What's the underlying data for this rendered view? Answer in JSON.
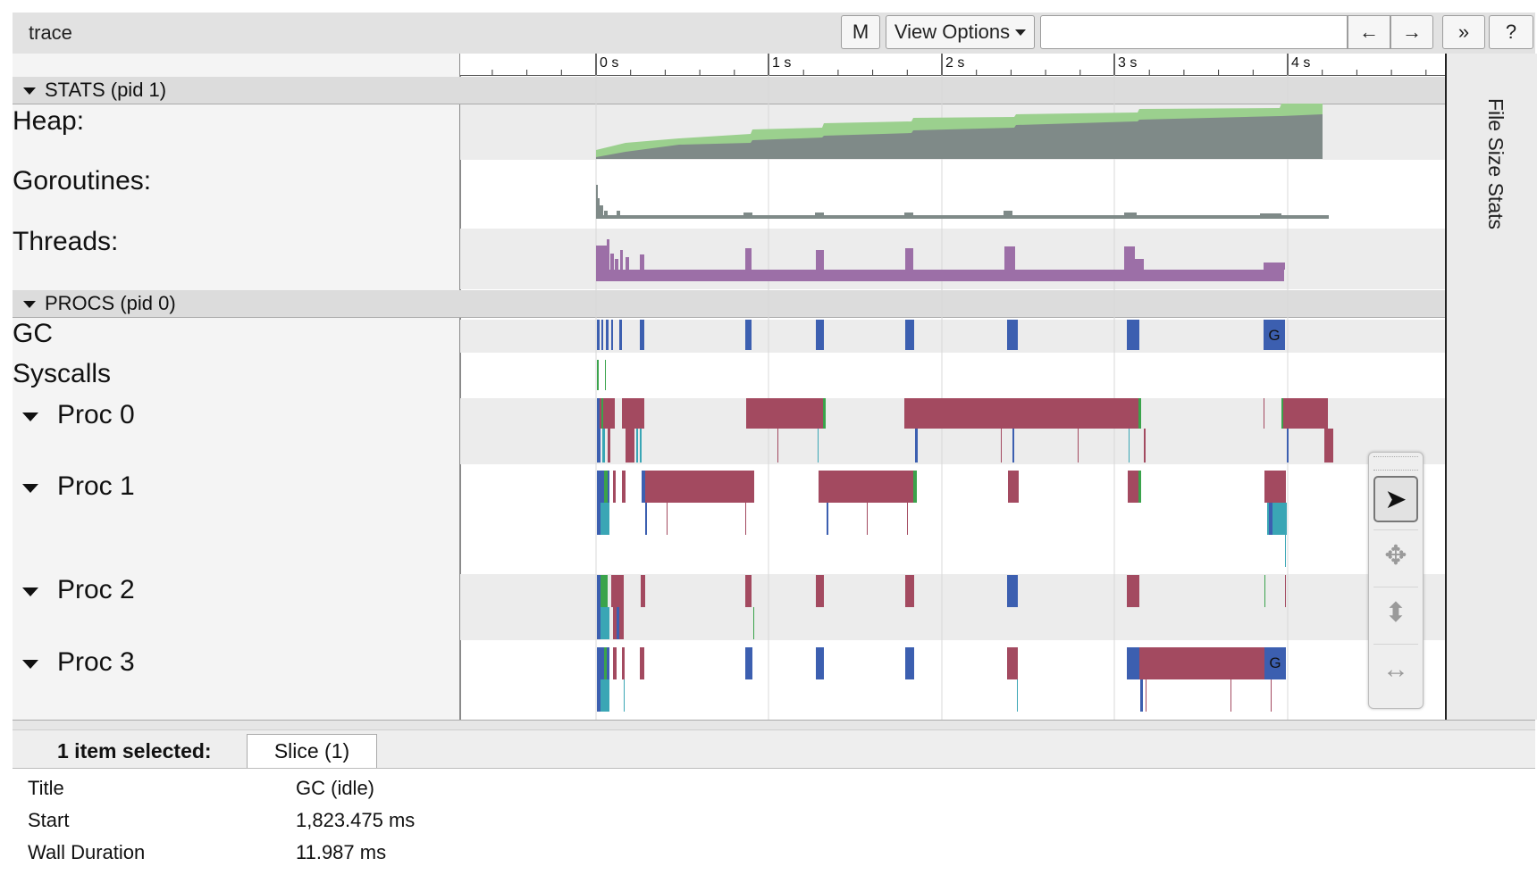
{
  "toolbar": {
    "title": "trace",
    "m_label": "M",
    "view_options_label": "View Options",
    "search_value": "",
    "prev_label": "←",
    "next_label": "→",
    "more_label": "»",
    "help_label": "?"
  },
  "ruler": {
    "ticks": [
      "0 s",
      "1 s",
      "2 s",
      "3 s",
      "4 s"
    ]
  },
  "side_panel": {
    "label": "File Size Stats"
  },
  "groups": {
    "stats": {
      "label": "STATS (pid 1)"
    },
    "procs": {
      "label": "PROCS (pid 0)"
    }
  },
  "stats_rows": {
    "heap": "Heap:",
    "goroutines": "Goroutines:",
    "threads": "Threads:"
  },
  "procs_rows": {
    "gc": "GC",
    "syscalls": "Syscalls",
    "proc0": "Proc 0",
    "proc1": "Proc 1",
    "proc2": "Proc 2",
    "proc3": "Proc 3"
  },
  "slice_letters": {
    "gc": "G",
    "proc3": "G"
  },
  "selection": {
    "summary": "1 item selected:",
    "tab": "Slice (1)",
    "props": [
      {
        "key": "Title",
        "value": "GC (idle)"
      },
      {
        "key": "Start",
        "value": "1,823.475 ms"
      },
      {
        "key": "Wall Duration",
        "value": "11.987 ms"
      }
    ]
  },
  "colors": {
    "heap_allocated": "#9bd08e",
    "heap_inuse": "#7f8a88",
    "threads": "#9c6fa7",
    "gc": "#3c5fb0",
    "proc_running": "#a34a60",
    "syscall": "#3aa34b",
    "teal": "#3aa6b5"
  }
}
